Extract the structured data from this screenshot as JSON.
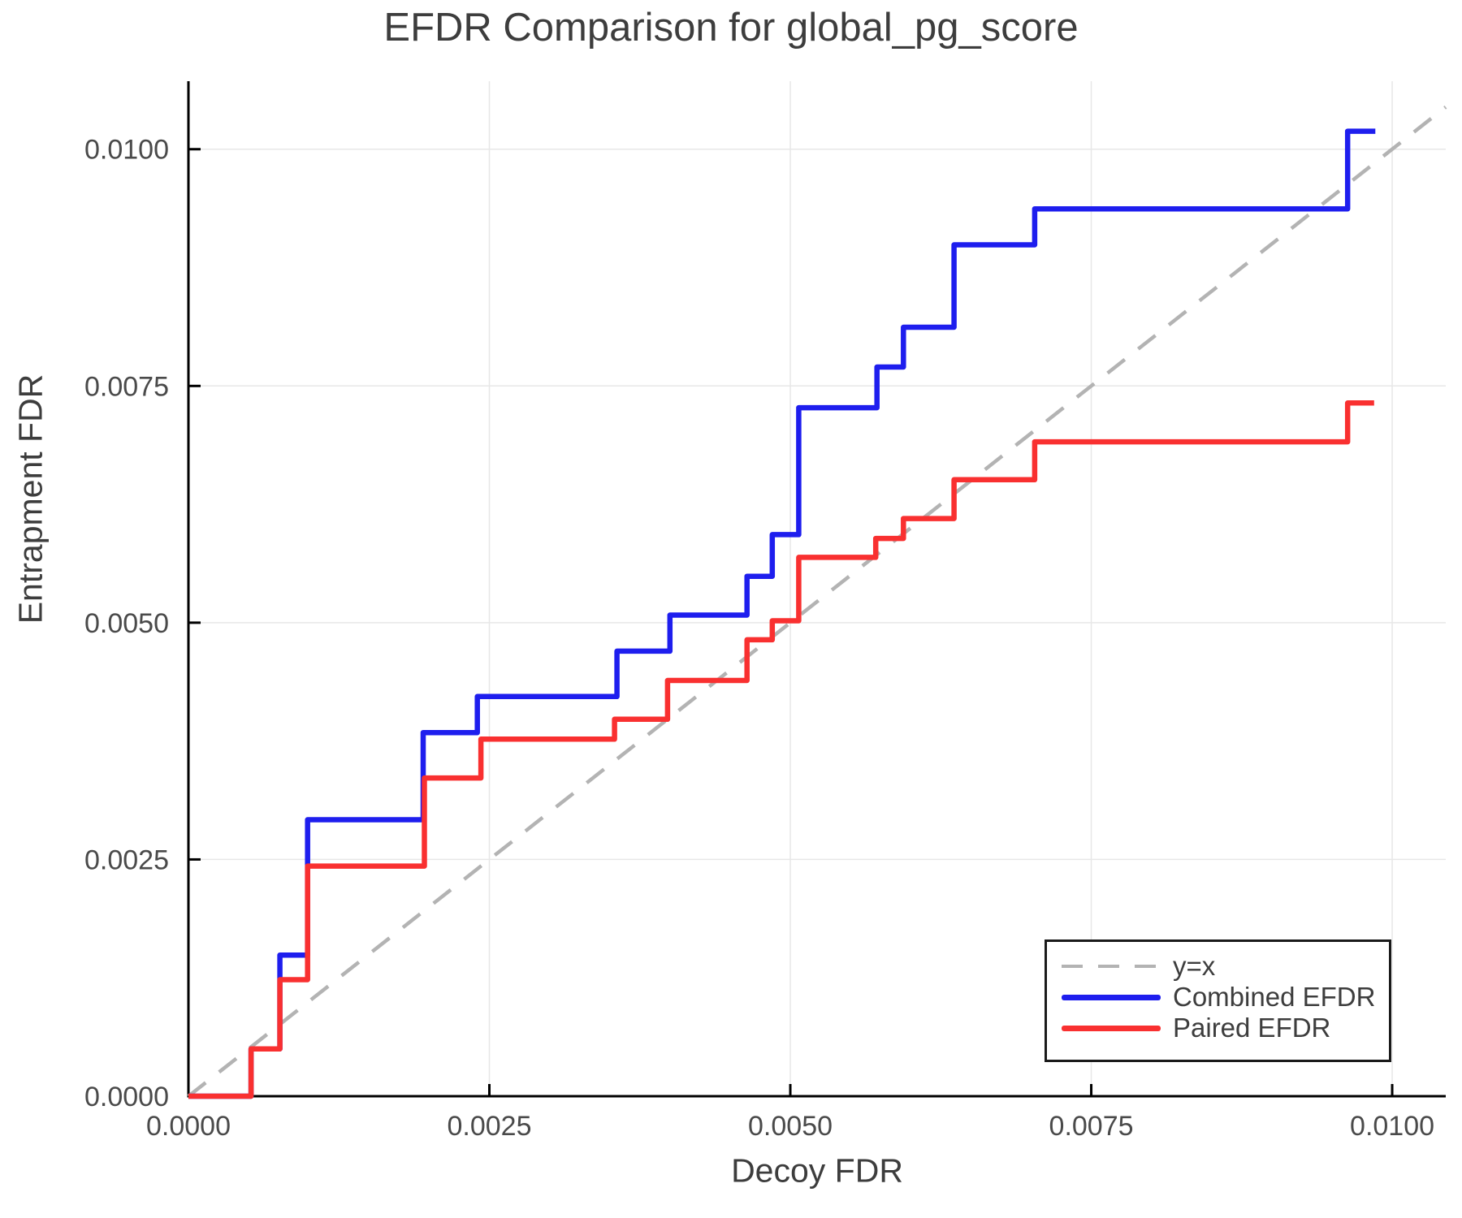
{
  "chart_data": {
    "type": "line",
    "title": "EFDR Comparison for global_pg_score",
    "xlabel": "Decoy FDR",
    "ylabel": "Entrapment FDR",
    "xlim": [
      0,
      0.010445
    ],
    "ylim": [
      0,
      0.010718
    ],
    "grid": true,
    "legend_position": "bottom-right",
    "xticks": {
      "values": [
        0,
        0.0025,
        0.005,
        0.0075,
        0.01
      ],
      "labels": [
        "0.0000",
        "0.0025",
        "0.0050",
        "0.0075",
        "0.0100"
      ]
    },
    "yticks": {
      "values": [
        0,
        0.0025,
        0.005,
        0.0075,
        0.01
      ],
      "labels": [
        "0.0000",
        "0.0025",
        "0.0050",
        "0.0075",
        "0.0100"
      ]
    },
    "colors": {
      "grid": "#e7e7e7",
      "axis": "#000000",
      "title_text": "#3d3d3d",
      "tick_text": "#4a4a4a",
      "identity": "#b3b3b3",
      "combined": "#1e1eee",
      "paired": "#f93030"
    },
    "series": [
      {
        "name": "y=x",
        "color": "#b3b3b3",
        "dash": true,
        "step": false,
        "points": [
          [
            0,
            0
          ],
          [
            0.010445,
            0.010445
          ]
        ]
      },
      {
        "name": "Combined EFDR",
        "color": "#1e1eee",
        "dash": false,
        "step": true,
        "points": [
          [
            0,
            0
          ],
          [
            0.00052,
            0.0005
          ],
          [
            0.00076,
            0.00149
          ],
          [
            0.00099,
            0.00292
          ],
          [
            0.00195,
            0.00384
          ],
          [
            0.0024,
            0.00422
          ],
          [
            0.00356,
            0.0047
          ],
          [
            0.004,
            0.00508
          ],
          [
            0.00464,
            0.00549
          ],
          [
            0.00485,
            0.00593
          ],
          [
            0.00507,
            0.00727
          ],
          [
            0.00572,
            0.0077
          ],
          [
            0.00594,
            0.00812
          ],
          [
            0.00636,
            0.00899
          ],
          [
            0.00703,
            0.00937
          ],
          [
            0.00963,
            0.01019
          ],
          [
            0.00986,
            0.01019
          ]
        ]
      },
      {
        "name": "Paired EFDR",
        "color": "#f93030",
        "dash": false,
        "step": true,
        "points": [
          [
            0,
            0
          ],
          [
            0.00052,
            0.0005
          ],
          [
            0.00076,
            0.00123
          ],
          [
            0.00099,
            0.00243
          ],
          [
            0.00196,
            0.00336
          ],
          [
            0.00243,
            0.00377
          ],
          [
            0.00354,
            0.00398
          ],
          [
            0.00398,
            0.00439
          ],
          [
            0.00464,
            0.00482
          ],
          [
            0.00485,
            0.00502
          ],
          [
            0.00507,
            0.00569
          ],
          [
            0.00571,
            0.00589
          ],
          [
            0.00594,
            0.0061
          ],
          [
            0.00636,
            0.00651
          ],
          [
            0.00703,
            0.00691
          ],
          [
            0.00963,
            0.00732
          ],
          [
            0.00985,
            0.00732
          ]
        ]
      }
    ]
  }
}
